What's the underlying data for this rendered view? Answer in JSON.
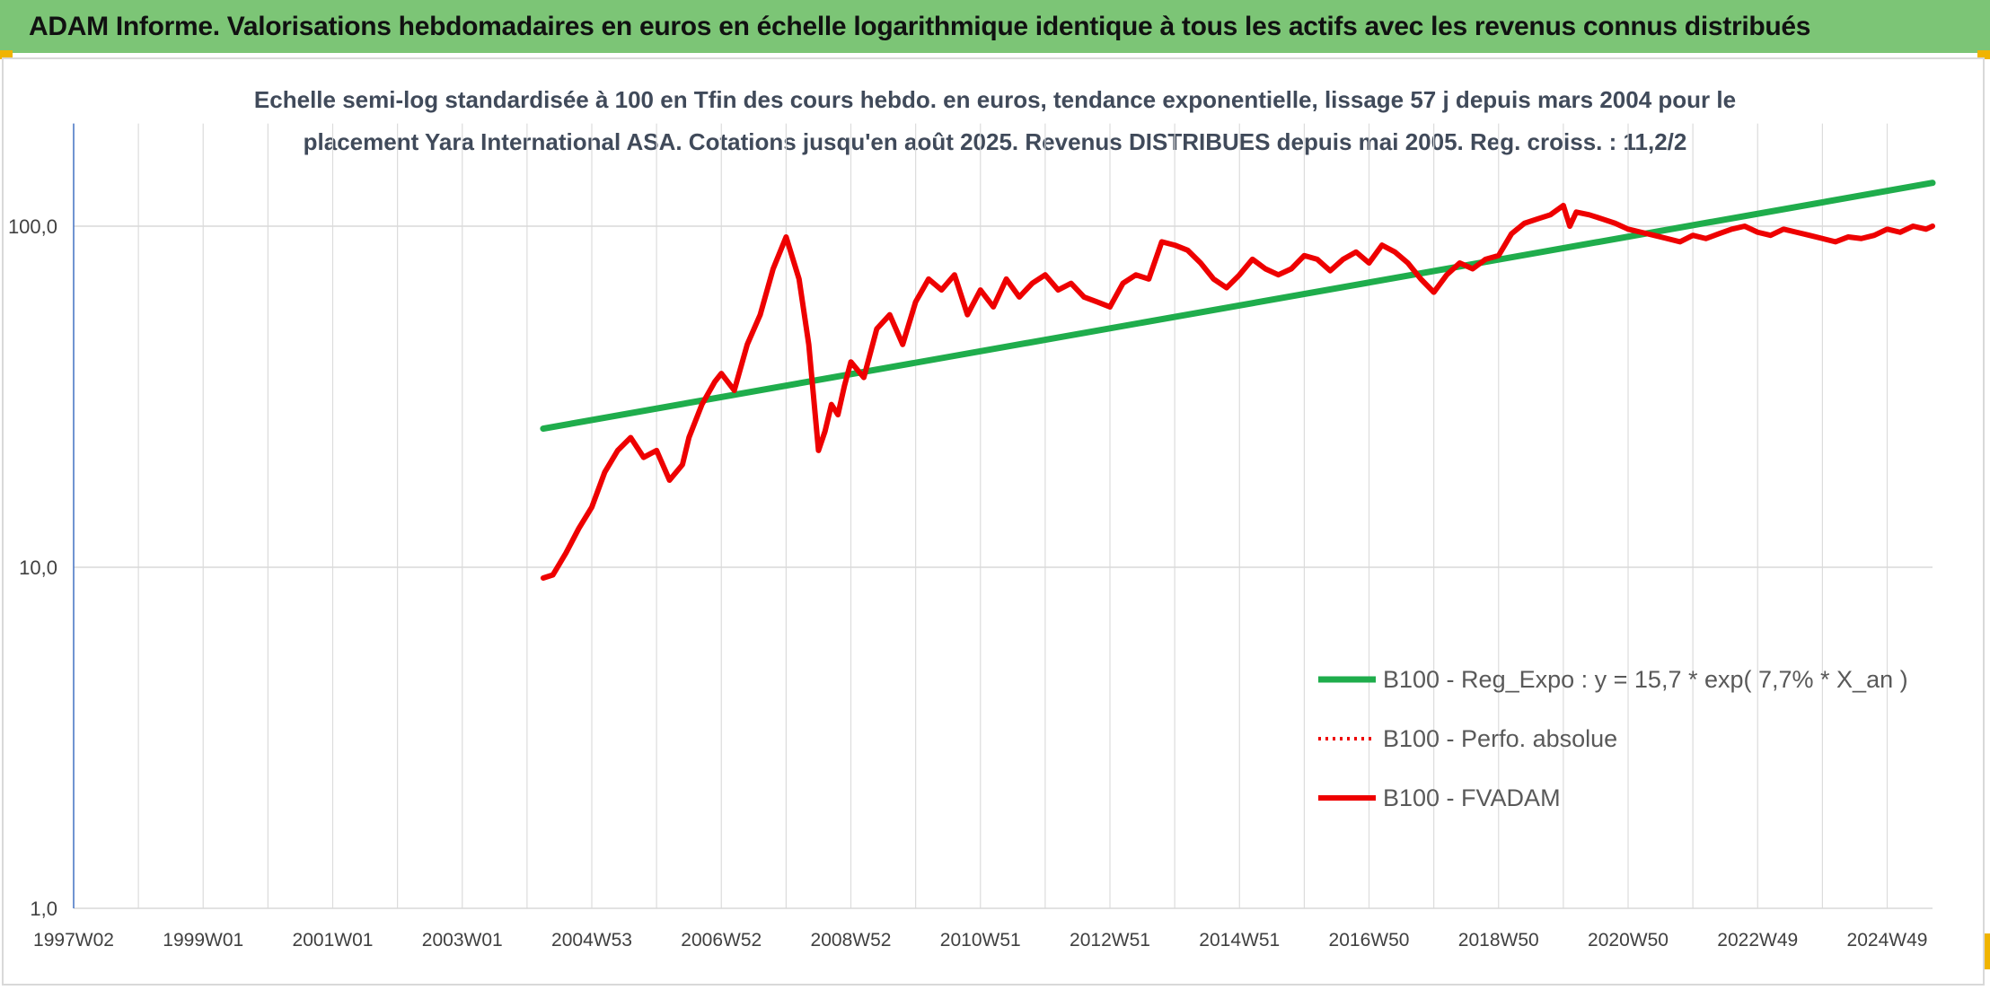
{
  "header": {
    "title": "ADAM Informe. Valorisations hebdomadaires en euros en échelle logarithmique identique à tous les actifs avec les revenus connus distribués"
  },
  "chart_data": {
    "type": "line",
    "title_lines": [
      "Echelle semi-log standardisée à 100 en Tfin des cours hebdo. en euros, tendance exponentielle, lissage 57 j depuis mars 2004 pour le",
      "placement Yara International ASA. Cotations jusqu'en août 2025. Revenus DISTRIBUES depuis mai 2005. Reg. croiss. : 11,2/2"
    ],
    "y_scale": "log",
    "ylim": [
      1,
      200
    ],
    "y_ticks": [
      "1,0",
      "10,0",
      "100,0"
    ],
    "xlim": [
      1997.0,
      2025.7
    ],
    "x_ticks": [
      {
        "label": "1997W02",
        "year": 1997.0
      },
      {
        "label": "1999W01",
        "year": 1999.0
      },
      {
        "label": "2001W01",
        "year": 2001.0
      },
      {
        "label": "2003W01",
        "year": 2003.0
      },
      {
        "label": "2004W53",
        "year": 2005.0
      },
      {
        "label": "2006W52",
        "year": 2007.0
      },
      {
        "label": "2008W52",
        "year": 2009.0
      },
      {
        "label": "2010W51",
        "year": 2011.0
      },
      {
        "label": "2012W51",
        "year": 2013.0
      },
      {
        "label": "2014W51",
        "year": 2015.0
      },
      {
        "label": "2016W50",
        "year": 2017.0
      },
      {
        "label": "2018W50",
        "year": 2019.0
      },
      {
        "label": "2020W50",
        "year": 2021.0
      },
      {
        "label": "2022W49",
        "year": 2023.0
      },
      {
        "label": "2024W49",
        "year": 2025.0
      }
    ],
    "grid": true,
    "legend_position": "bottom-right",
    "series": [
      {
        "name": "B100 - Reg_Expo : y = 15,7 * exp( 7,7% *  X_an )",
        "color": "#1fad4c",
        "style": "solid",
        "x": [
          2004.25,
          2025.7
        ],
        "y": [
          25.5,
          134
        ]
      },
      {
        "name": "B100 - Perfo. absolue",
        "color": "#ee0000",
        "style": "dotted",
        "x": [],
        "y": []
      },
      {
        "name": "B100 - FVADAM",
        "color": "#ee0000",
        "style": "solid",
        "x": [
          2004.25,
          2004.4,
          2004.6,
          2004.8,
          2005.0,
          2005.2,
          2005.4,
          2005.6,
          2005.8,
          2006.0,
          2006.2,
          2006.4,
          2006.5,
          2006.7,
          2006.9,
          2007.0,
          2007.2,
          2007.4,
          2007.6,
          2007.8,
          2008.0,
          2008.2,
          2008.35,
          2008.5,
          2008.6,
          2008.7,
          2008.8,
          2008.9,
          2009.0,
          2009.2,
          2009.4,
          2009.6,
          2009.8,
          2010.0,
          2010.2,
          2010.4,
          2010.6,
          2010.8,
          2011.0,
          2011.2,
          2011.4,
          2011.6,
          2011.8,
          2012.0,
          2012.2,
          2012.4,
          2012.6,
          2012.8,
          2013.0,
          2013.2,
          2013.4,
          2013.6,
          2013.8,
          2014.0,
          2014.2,
          2014.4,
          2014.6,
          2014.8,
          2015.0,
          2015.2,
          2015.4,
          2015.6,
          2015.8,
          2016.0,
          2016.2,
          2016.4,
          2016.6,
          2016.8,
          2017.0,
          2017.2,
          2017.4,
          2017.6,
          2017.8,
          2018.0,
          2018.2,
          2018.4,
          2018.6,
          2018.8,
          2019.0,
          2019.2,
          2019.4,
          2019.6,
          2019.8,
          2020.0,
          2020.1,
          2020.2,
          2020.4,
          2020.6,
          2020.8,
          2021.0,
          2021.2,
          2021.4,
          2021.6,
          2021.8,
          2022.0,
          2022.2,
          2022.4,
          2022.6,
          2022.8,
          2023.0,
          2023.2,
          2023.4,
          2023.6,
          2023.8,
          2024.0,
          2024.2,
          2024.4,
          2024.6,
          2024.8,
          2025.0,
          2025.2,
          2025.4,
          2025.6,
          2025.7
        ],
        "y": [
          9.3,
          9.5,
          11.0,
          13.0,
          15.0,
          19.0,
          22.0,
          24.0,
          21.0,
          22.0,
          18.0,
          20.0,
          24.0,
          30.0,
          35.0,
          37.0,
          33.0,
          45.0,
          55.0,
          75.0,
          93.0,
          70.0,
          45.0,
          22.0,
          25.0,
          30.0,
          28.0,
          34.0,
          40.0,
          36.0,
          50.0,
          55.0,
          45.0,
          60.0,
          70.0,
          65.0,
          72.0,
          55.0,
          65.0,
          58.0,
          70.0,
          62.0,
          68.0,
          72.0,
          65.0,
          68.0,
          62.0,
          60.0,
          58.0,
          68.0,
          72.0,
          70.0,
          90.0,
          88.0,
          85.0,
          78.0,
          70.0,
          66.0,
          72.0,
          80.0,
          75.0,
          72.0,
          75.0,
          82.0,
          80.0,
          74.0,
          80.0,
          84.0,
          78.0,
          88.0,
          84.0,
          78.0,
          70.0,
          64.0,
          72.0,
          78.0,
          75.0,
          80.0,
          82.0,
          95.0,
          102.0,
          105.0,
          108.0,
          115.0,
          100.0,
          110.0,
          108.0,
          105.0,
          102.0,
          98.0,
          96.0,
          94.0,
          92.0,
          90.0,
          94.0,
          92.0,
          95.0,
          98.0,
          100.0,
          96.0,
          94.0,
          98.0,
          96.0,
          94.0,
          92.0,
          90.0,
          93.0,
          92.0,
          94.0,
          98.0,
          96.0,
          100.0,
          98.0,
          100.0
        ]
      }
    ]
  }
}
